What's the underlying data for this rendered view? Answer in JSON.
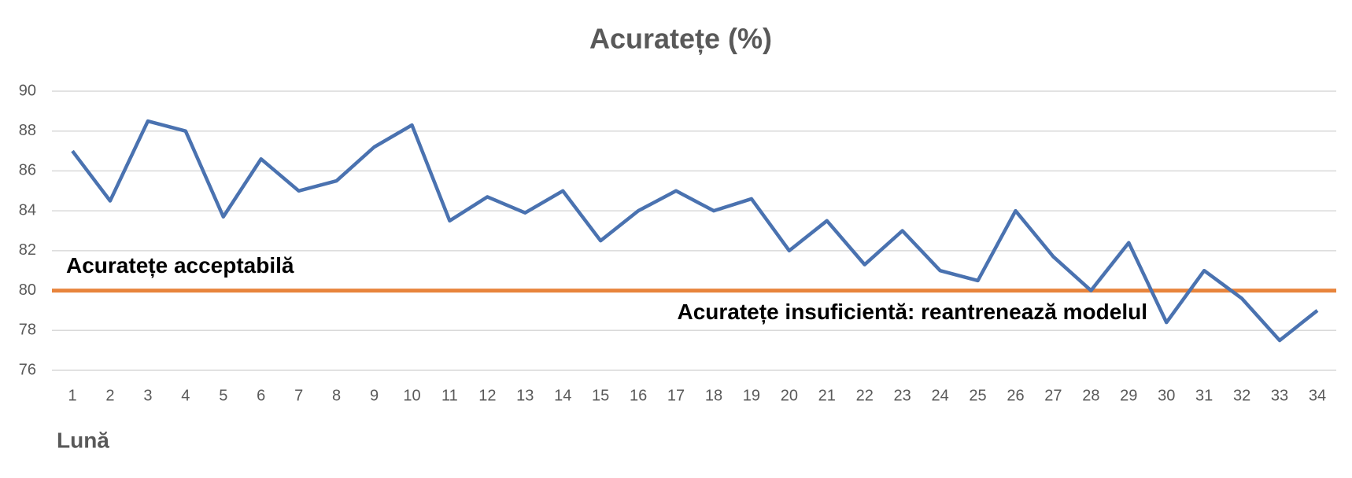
{
  "chart_data": {
    "type": "line",
    "title": "Acuratețe (%)",
    "x_label": "Lună",
    "categories": [
      "1",
      "2",
      "3",
      "4",
      "5",
      "6",
      "7",
      "8",
      "9",
      "10",
      "11",
      "12",
      "13",
      "14",
      "15",
      "16",
      "17",
      "18",
      "19",
      "20",
      "21",
      "22",
      "23",
      "24",
      "25",
      "26",
      "27",
      "28",
      "29",
      "30",
      "31",
      "32",
      "33",
      "34"
    ],
    "series": [
      {
        "name": "Acuratețe",
        "color": "#4a72b0",
        "values": [
          87,
          84.5,
          88.5,
          88,
          83.7,
          86.6,
          85,
          85.5,
          87.2,
          88.3,
          83.5,
          84.7,
          83.9,
          85,
          82.5,
          84,
          85,
          84,
          84.6,
          82,
          83.5,
          81.3,
          83,
          81,
          80.5,
          84,
          81.7,
          80,
          82.4,
          78.4,
          81,
          79.6,
          77.5,
          79
        ]
      }
    ],
    "ylim": [
      76,
      90
    ],
    "yticks": [
      76,
      78,
      80,
      82,
      84,
      86,
      88,
      90
    ],
    "grid": true,
    "reference_line": {
      "value": 80,
      "color": "#e8843c"
    },
    "annotations": [
      "Acuratețe acceptabilă",
      "Acuratețe insuficientă: reantrenează modelul"
    ]
  }
}
